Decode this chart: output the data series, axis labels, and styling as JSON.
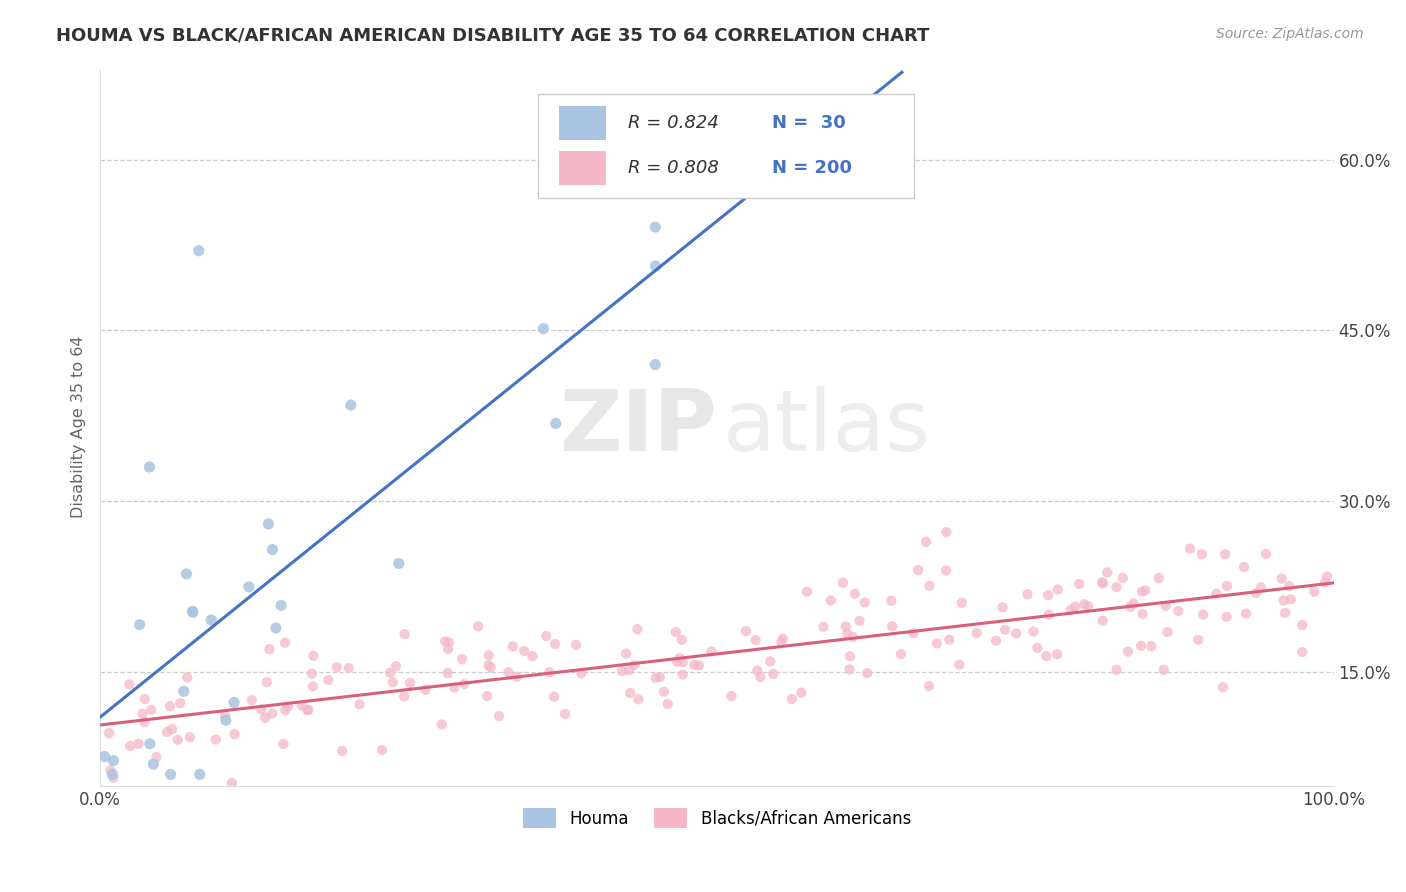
{
  "title": "HOUMA VS BLACK/AFRICAN AMERICAN DISABILITY AGE 35 TO 64 CORRELATION CHART",
  "source": "Source: ZipAtlas.com",
  "ylabel": "Disability Age 35 to 64",
  "xlim": [
    0.0,
    1.0
  ],
  "ylim": [
    0.05,
    0.68
  ],
  "xtick_labels": [
    "0.0%",
    "100.0%"
  ],
  "ytick_labels": [
    "15.0%",
    "30.0%",
    "45.0%",
    "60.0%"
  ],
  "ytick_values": [
    0.15,
    0.3,
    0.45,
    0.6
  ],
  "legend_entries": [
    "Houma",
    "Blacks/African Americans"
  ],
  "houma_color": "#a8c4e0",
  "houma_line_color": "#4472c4",
  "baa_color": "#f4b8c8",
  "baa_line_color": "#d9607a",
  "R_houma": 0.824,
  "N_houma": 30,
  "R_baa": 0.808,
  "N_baa": 200,
  "watermark_zip": "ZIP",
  "watermark_atlas": "atlas",
  "background_color": "#ffffff",
  "grid_color": "#cccccc",
  "title_color": "#333333",
  "axis_label_color": "#666666",
  "ytick_color": "#4472c4",
  "source_color": "#999999"
}
